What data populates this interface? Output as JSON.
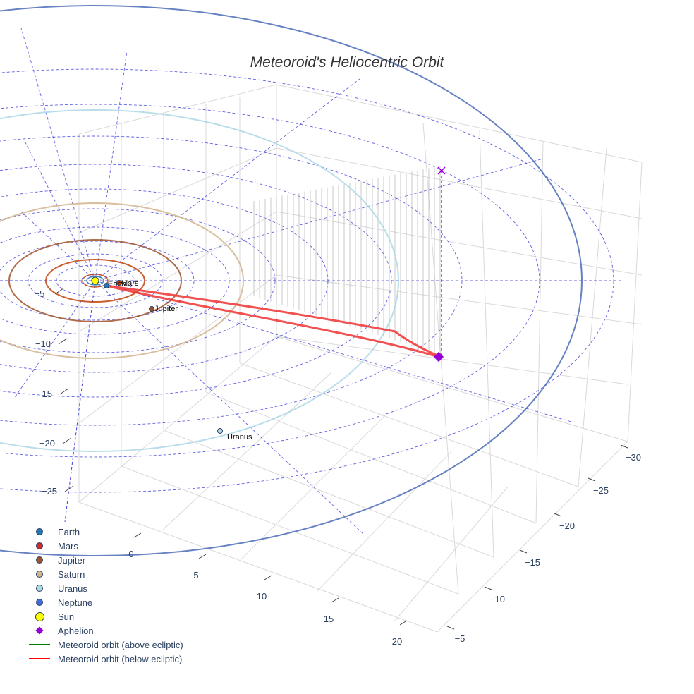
{
  "chart_data": {
    "type": "scatter3d",
    "title": "Meteoroid's Heliocentric Orbit",
    "x_axis": {
      "ticks": [
        "0",
        "5",
        "10",
        "15",
        "20"
      ],
      "range": [
        -2,
        24
      ]
    },
    "y_axis": {
      "ticks": [
        "−30",
        "−25",
        "−20",
        "−15",
        "−10",
        "−5"
      ],
      "range": [
        -31,
        -3
      ]
    },
    "z_axis": {
      "ticks": [
        "−5",
        "−10",
        "−15",
        "−20",
        "−25"
      ]
    },
    "planet_labels": [
      "Earth",
      "Mars",
      "Jupiter",
      "Uranus"
    ],
    "legend": [
      {
        "name": "Earth",
        "symbol": "dot",
        "color": "#1f77b4"
      },
      {
        "name": "Mars",
        "symbol": "dot",
        "color": "#d62728"
      },
      {
        "name": "Jupiter",
        "symbol": "dot",
        "color": "#a0522d"
      },
      {
        "name": "Saturn",
        "symbol": "dot",
        "color": "#d2b48c"
      },
      {
        "name": "Uranus",
        "symbol": "dot",
        "color": "#add8e6"
      },
      {
        "name": "Neptune",
        "symbol": "dot",
        "color": "#4169e1"
      },
      {
        "name": "Sun",
        "symbol": "bigdot",
        "color": "#ffff00"
      },
      {
        "name": "Aphelion",
        "symbol": "diamond",
        "color": "#9400d3"
      },
      {
        "name": "Meteoroid orbit (above ecliptic)",
        "symbol": "line",
        "color": "#008000"
      },
      {
        "name": "Meteoroid orbit (below ecliptic)",
        "symbol": "line",
        "color": "#ff0000"
      }
    ],
    "colors": {
      "grid": "#d9d9d9",
      "ecliptic_grid": "#4444dd",
      "earth": "#1f77b4",
      "mars": "#c1440e",
      "jupiter": "#a0522d",
      "saturn": "#d2b48c",
      "uranus": "#add8e6",
      "neptune": "#4b6cb7",
      "orbit_below": "#ee3333",
      "aphelion": "#9400d3"
    }
  }
}
